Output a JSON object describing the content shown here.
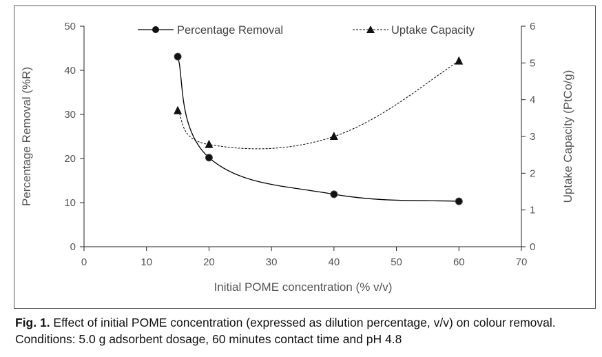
{
  "chart_data": {
    "type": "line",
    "x": [
      15,
      20,
      40,
      60
    ],
    "xlabel": "Initial POME concentration (% v/v)",
    "xlim": [
      0,
      70
    ],
    "xticks": [
      0,
      10,
      20,
      30,
      40,
      50,
      60,
      70
    ],
    "ylabel": "Percentage Removal (%R)",
    "ylim": [
      0,
      50
    ],
    "yticks": [
      0,
      10,
      20,
      30,
      40,
      50
    ],
    "y2label": "Uptake Capacity (PtCo/g)",
    "y2lim": [
      0,
      6
    ],
    "y2ticks": [
      0,
      1,
      2,
      3,
      4,
      5,
      6
    ],
    "grid": false,
    "legend_position": "top",
    "series": [
      {
        "name": "Percentage Removal",
        "axis": "left",
        "values": [
          43.1,
          20.2,
          11.9,
          10.3
        ],
        "marker": "circle",
        "line": "solid",
        "color": "#000000"
      },
      {
        "name": "Uptake Capacity",
        "axis": "right",
        "values": [
          3.7,
          2.78,
          3.0,
          5.05
        ],
        "marker": "triangle",
        "line": "dashed",
        "color": "#000000"
      }
    ]
  },
  "caption": {
    "label": "Fig. 1.",
    "text": " Effect of initial POME concentration (expressed as dilution percentage, v/v) on colour removal. Conditions: 5.0 g adsorbent dosage, 60 minutes contact time and pH 4.8"
  }
}
